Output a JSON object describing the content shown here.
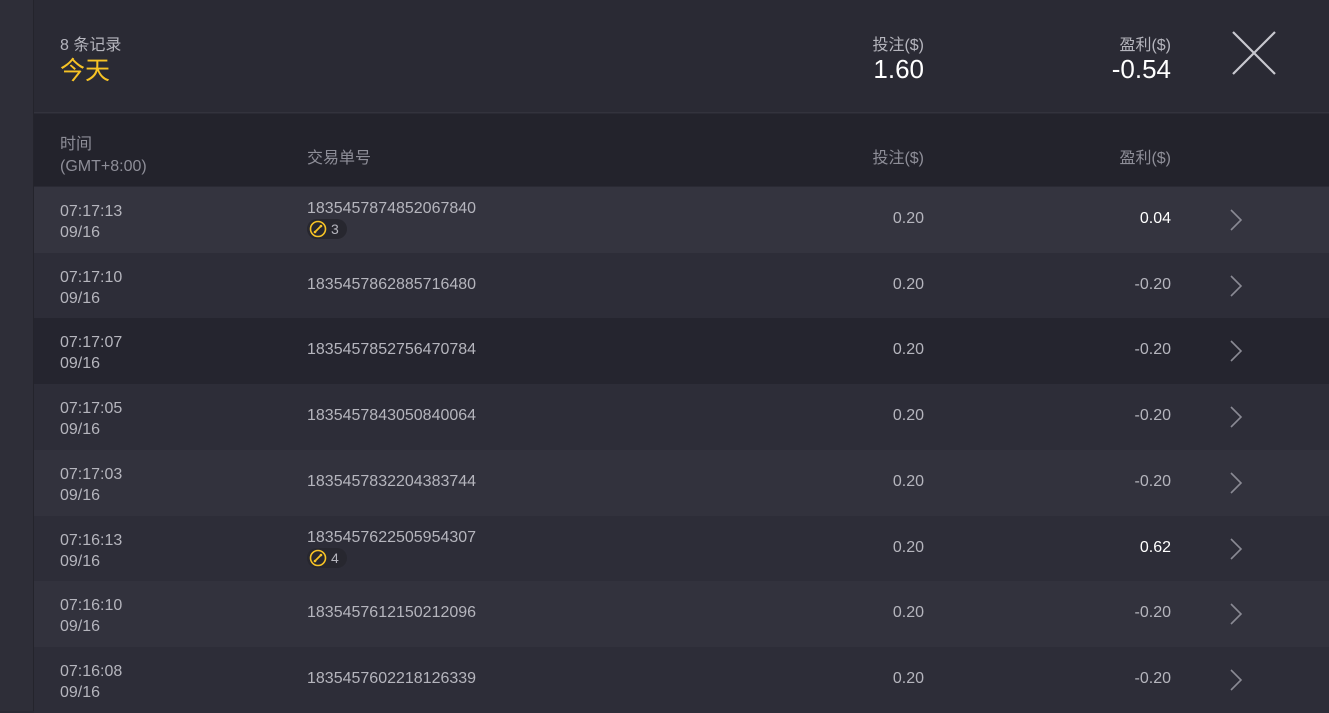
{
  "summary": {
    "count": "8 条记录",
    "period": "今天",
    "bet_label": "投注($)",
    "bet_total": "1.60",
    "pl_label": "盈利($)",
    "pl_total": "-0.54"
  },
  "table": {
    "headers": {
      "time": "时间",
      "timezone": "(GMT+8:00)",
      "id": "交易单号",
      "bet": "投注($)",
      "pl": "盈利($)"
    },
    "rows": [
      {
        "time": "07:17:13",
        "date": "09/16",
        "id": "1835457874852067840",
        "badge": "3",
        "bet": "0.20",
        "pl": "0.04"
      },
      {
        "time": "07:17:10",
        "date": "09/16",
        "id": "1835457862885716480",
        "bet": "0.20",
        "pl": "-0.20"
      },
      {
        "time": "07:17:07",
        "date": "09/16",
        "id": "1835457852756470784",
        "bet": "0.20",
        "pl": "-0.20"
      },
      {
        "time": "07:17:05",
        "date": "09/16",
        "id": "1835457843050840064",
        "bet": "0.20",
        "pl": "-0.20"
      },
      {
        "time": "07:17:03",
        "date": "09/16",
        "id": "1835457832204383744",
        "bet": "0.20",
        "pl": "-0.20"
      },
      {
        "time": "07:16:13",
        "date": "09/16",
        "id": "1835457622505954307",
        "badge": "4",
        "bet": "0.20",
        "pl": "0.62"
      },
      {
        "time": "07:16:10",
        "date": "09/16",
        "id": "1835457612150212096",
        "bet": "0.20",
        "pl": "-0.20"
      },
      {
        "time": "07:16:08",
        "date": "09/16",
        "id": "1835457602218126339",
        "bet": "0.20",
        "pl": "-0.20"
      }
    ]
  },
  "colors": {
    "accent": "#f7c325",
    "positive": "#ffffff"
  }
}
